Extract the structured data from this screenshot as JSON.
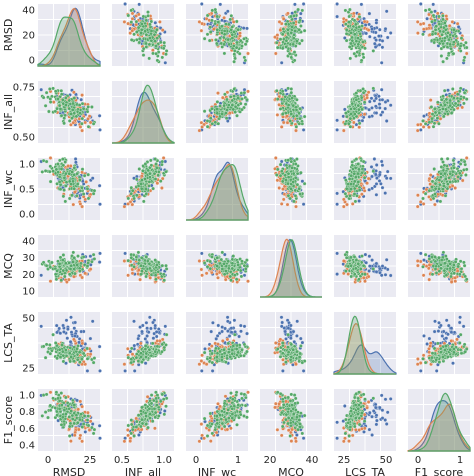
{
  "chart_data": {
    "type": "scatter",
    "title": "",
    "variables": [
      "RMSD",
      "INF_all",
      "INF_wc",
      "MCQ",
      "LCS_TA",
      "F1_score"
    ],
    "ranges": {
      "RMSD": [
        0,
        40
      ],
      "INF_all": [
        0.3,
        0.9
      ],
      "INF_wc": [
        0,
        1
      ],
      "MCQ": [
        5,
        45
      ],
      "LCS_TA": [
        5,
        65
      ],
      "F1_score": [
        0.1,
        1.05
      ]
    },
    "x_ticks": {
      "RMSD": [
        "0",
        "25"
      ],
      "INF_all": [
        "0.5",
        "1.0"
      ],
      "INF_wc": [
        "0",
        "1"
      ],
      "MCQ": [
        "20",
        "40"
      ],
      "LCS_TA": [
        "25",
        "50"
      ],
      "F1_score": [
        "0",
        "1"
      ]
    },
    "y_ticks": {
      "RMSD": [
        "40",
        "20",
        "0"
      ],
      "INF_all": [
        "0.75",
        "0.50"
      ],
      "INF_wc": [
        "1.0",
        "0.5",
        "0.0"
      ],
      "MCQ": [
        "40",
        "30",
        "20",
        "10"
      ],
      "LCS_TA": [
        "50",
        "25"
      ],
      "F1_score": [
        "1.0",
        "0.8",
        "0.6",
        "0.4"
      ]
    },
    "diagonal": "kde",
    "off_diagonal": "scatter",
    "grid": true,
    "background": "#eaeaf2",
    "series": [
      {
        "color": "#4c72b0"
      },
      {
        "color": "#dd8452"
      },
      {
        "color": "#55a868"
      }
    ]
  }
}
